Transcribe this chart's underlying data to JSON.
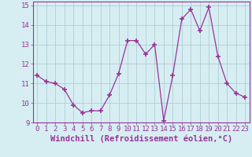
{
  "x": [
    0,
    1,
    2,
    3,
    4,
    5,
    6,
    7,
    8,
    9,
    10,
    11,
    12,
    13,
    14,
    15,
    16,
    17,
    18,
    19,
    20,
    21,
    22,
    23
  ],
  "y": [
    11.4,
    11.1,
    11.0,
    10.7,
    9.9,
    9.5,
    9.6,
    9.6,
    10.4,
    11.5,
    13.2,
    13.2,
    12.5,
    13.0,
    9.1,
    11.4,
    14.3,
    14.8,
    13.7,
    14.9,
    12.4,
    11.0,
    10.5,
    10.3
  ],
  "xlim": [
    -0.5,
    23.5
  ],
  "ylim": [
    9.0,
    15.2
  ],
  "yticks": [
    9,
    10,
    11,
    12,
    13,
    14,
    15
  ],
  "xticks": [
    0,
    1,
    2,
    3,
    4,
    5,
    6,
    7,
    8,
    9,
    10,
    11,
    12,
    13,
    14,
    15,
    16,
    17,
    18,
    19,
    20,
    21,
    22,
    23
  ],
  "xlabel": "Windchill (Refroidissement éolien,°C)",
  "line_color": "#993399",
  "marker": "+",
  "marker_size": 4,
  "bg_color": "#d6eef2",
  "grid_color": "#b0cdd4",
  "tick_color": "#993399",
  "label_color": "#993399",
  "tick_fontsize": 6.5,
  "xlabel_fontsize": 7.5
}
